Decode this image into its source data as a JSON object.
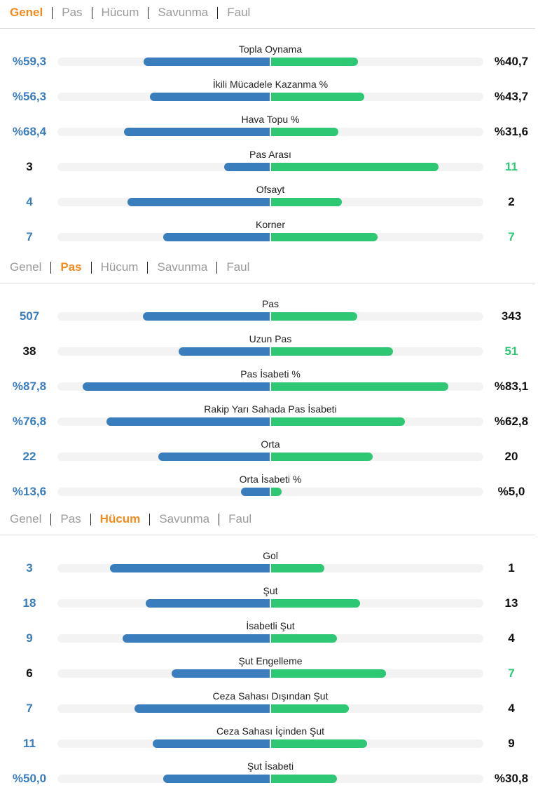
{
  "tabs": [
    "Genel",
    "Pas",
    "Hücum",
    "Savunma",
    "Faul"
  ],
  "colors": {
    "home": "#3a7dbd",
    "away": "#2ec774",
    "active_tab": "#f28b1e"
  },
  "sections": [
    {
      "active_tab": 0,
      "rows": [
        {
          "label": "Topla Oynama",
          "home": "%59,3",
          "away": "%40,7",
          "home_fill": 0.593,
          "away_fill": 0.407,
          "winner": "home"
        },
        {
          "label": "İkili Mücadele Kazanma %",
          "home": "%56,3",
          "away": "%43,7",
          "home_fill": 0.563,
          "away_fill": 0.437,
          "winner": "home"
        },
        {
          "label": "Hava Topu %",
          "home": "%68,4",
          "away": "%31,6",
          "home_fill": 0.684,
          "away_fill": 0.316,
          "winner": "home"
        },
        {
          "label": "Pas Arası",
          "home": "3",
          "away": "11",
          "home_fill": 0.214,
          "away_fill": 0.786,
          "winner": "away"
        },
        {
          "label": "Ofsayt",
          "home": "4",
          "away": "2",
          "home_fill": 0.667,
          "away_fill": 0.333,
          "winner": "home"
        },
        {
          "label": "Korner",
          "home": "7",
          "away": "7",
          "home_fill": 0.5,
          "away_fill": 0.5,
          "winner": "tie"
        }
      ]
    },
    {
      "active_tab": 1,
      "rows": [
        {
          "label": "Pas",
          "home": "507",
          "away": "343",
          "home_fill": 0.596,
          "away_fill": 0.404,
          "winner": "home"
        },
        {
          "label": "Uzun Pas",
          "home": "38",
          "away": "51",
          "home_fill": 0.427,
          "away_fill": 0.573,
          "winner": "away"
        },
        {
          "label": "Pas İsabeti %",
          "home": "%87,8",
          "away": "%83,1",
          "home_fill": 0.878,
          "away_fill": 0.831,
          "winner": "home"
        },
        {
          "label": "Rakip Yarı Sahada Pas İsabeti",
          "home": "%76,8",
          "away": "%62,8",
          "home_fill": 0.768,
          "away_fill": 0.628,
          "winner": "home"
        },
        {
          "label": "Orta",
          "home": "22",
          "away": "20",
          "home_fill": 0.524,
          "away_fill": 0.476,
          "winner": "home"
        },
        {
          "label": "Orta İsabeti %",
          "home": "%13,6",
          "away": "%5,0",
          "home_fill": 0.136,
          "away_fill": 0.05,
          "winner": "home"
        }
      ]
    },
    {
      "active_tab": 2,
      "rows": [
        {
          "label": "Gol",
          "home": "3",
          "away": "1",
          "home_fill": 0.75,
          "away_fill": 0.25,
          "winner": "home"
        },
        {
          "label": "Şut",
          "home": "18",
          "away": "13",
          "home_fill": 0.581,
          "away_fill": 0.419,
          "winner": "home"
        },
        {
          "label": "İsabetli Şut",
          "home": "9",
          "away": "4",
          "home_fill": 0.692,
          "away_fill": 0.308,
          "winner": "home"
        },
        {
          "label": "Şut Engelleme",
          "home": "6",
          "away": "7",
          "home_fill": 0.462,
          "away_fill": 0.538,
          "winner": "away"
        },
        {
          "label": "Ceza Sahası Dışından Şut",
          "home": "7",
          "away": "4",
          "home_fill": 0.636,
          "away_fill": 0.364,
          "winner": "home"
        },
        {
          "label": "Ceza Sahası İçinden Şut",
          "home": "11",
          "away": "9",
          "home_fill": 0.55,
          "away_fill": 0.45,
          "winner": "home"
        },
        {
          "label": "Şut İsabeti",
          "home": "%50,0",
          "away": "%30,8",
          "home_fill": 0.5,
          "away_fill": 0.308,
          "winner": "home"
        }
      ]
    }
  ]
}
